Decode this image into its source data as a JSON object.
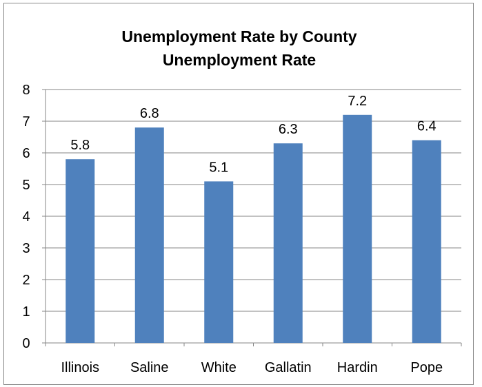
{
  "chart_data": {
    "type": "bar",
    "title": "Unemployment Rate by County",
    "subtitle": "Unemployment Rate",
    "categories": [
      "Illinois",
      "Saline",
      "White",
      "Gallatin",
      "Hardin",
      "Pope"
    ],
    "series": [
      {
        "values": [
          5.8,
          6.8,
          5.1,
          6.3,
          7.2,
          6.4
        ],
        "color": "#4f81bd"
      }
    ],
    "data_labels": [
      "5.8",
      "6.8",
      "5.1",
      "6.3",
      "7.2",
      "6.4"
    ],
    "ylim": [
      0,
      8
    ],
    "yticks": [
      "0",
      "1",
      "2",
      "3",
      "4",
      "5",
      "6",
      "7",
      "8"
    ],
    "grid": true,
    "legend": "none",
    "gridline_color": "#868686"
  }
}
